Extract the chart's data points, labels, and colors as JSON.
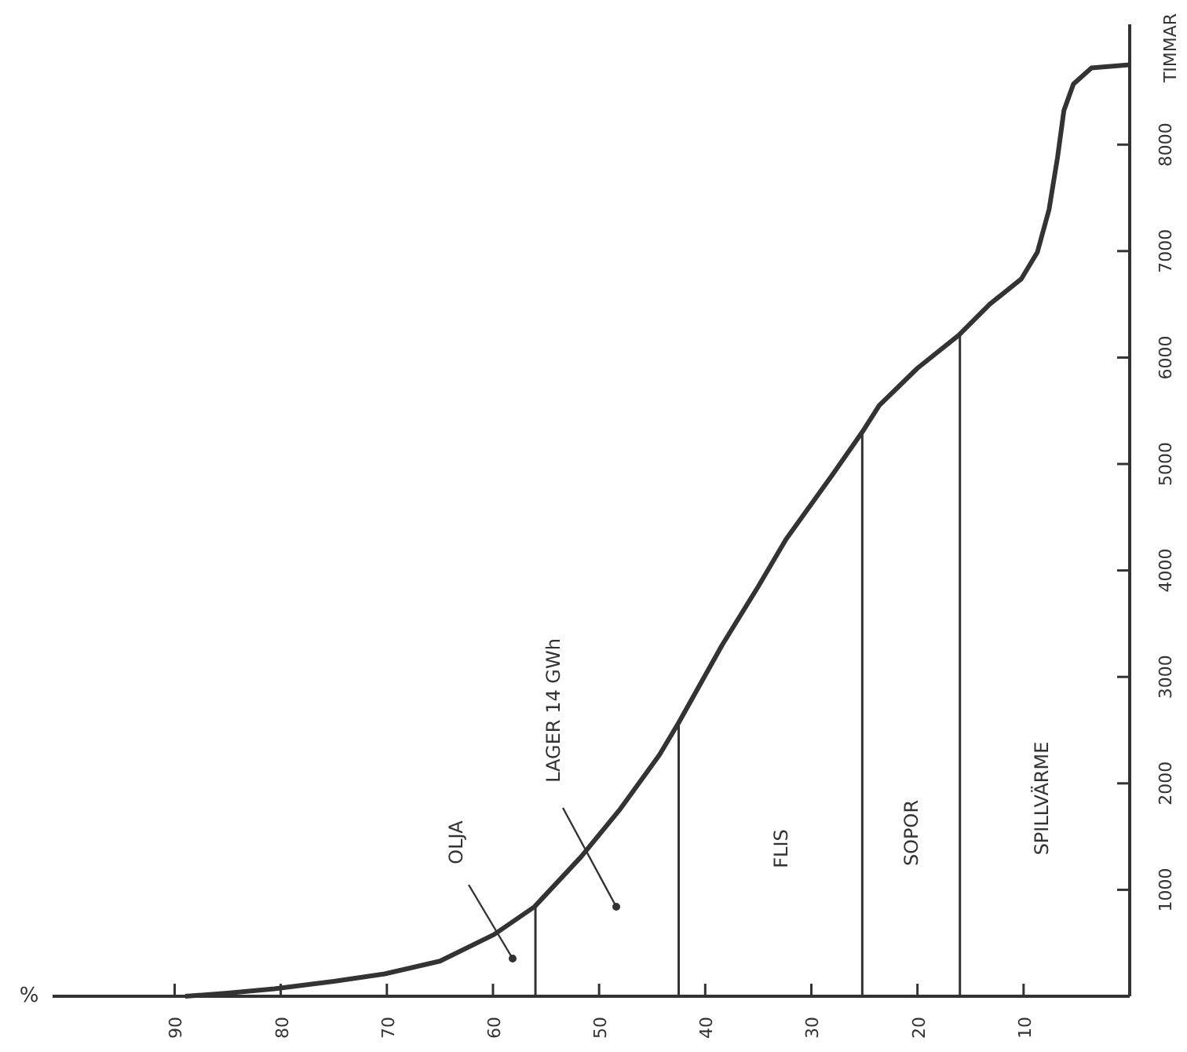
{
  "chart_data": {
    "type": "line",
    "xlabel": "%",
    "ylabel": "TIMMAR",
    "xlim": [
      101.5,
      0
    ],
    "ylim": [
      0,
      9130
    ],
    "xticks": [
      90,
      80,
      70,
      60,
      50,
      40,
      30,
      20,
      10
    ],
    "yticks": [
      1000,
      2000,
      3000,
      4000,
      5000,
      6000,
      7000,
      8000
    ],
    "series": [
      {
        "color": "#333333",
        "x": [
          89,
          85,
          80.6,
          75,
          70.2,
          65,
          59.9,
          56.1,
          51.7,
          48,
          44.3,
          42.5,
          38.4,
          35,
          32.4,
          28,
          25.2,
          23.6,
          20,
          16.1,
          13.2,
          10.2,
          8.7,
          7.6,
          6.8,
          6.2,
          5.3,
          3.6,
          0
        ],
        "values": [
          0,
          30,
          70,
          140,
          210,
          330,
          580,
          840,
          1310,
          1760,
          2270,
          2570,
          3300,
          3850,
          4290,
          4900,
          5300,
          5550,
          5900,
          6210,
          6500,
          6740,
          6990,
          7390,
          7880,
          8320,
          8570,
          8720,
          8750
        ]
      },
      {
        "color": "#333333",
        "x": [
          56.0,
          56.0
        ],
        "values": [
          0,
          840
        ]
      },
      {
        "color": "#333333",
        "x": [
          42.5,
          42.5
        ],
        "values": [
          0,
          2570
        ]
      },
      {
        "color": "#333333",
        "x": [
          25.2,
          25.2
        ],
        "values": [
          0,
          5300
        ]
      },
      {
        "color": "#333333",
        "x": [
          16.0,
          16.0
        ],
        "values": [
          0,
          6210
        ]
      }
    ],
    "annotations": [
      "OLJA",
      "LAGER 14 GWh",
      "FLIS",
      "SOPOR",
      "SPILLVÄRME"
    ],
    "grid": false,
    "line_style": "solid"
  }
}
